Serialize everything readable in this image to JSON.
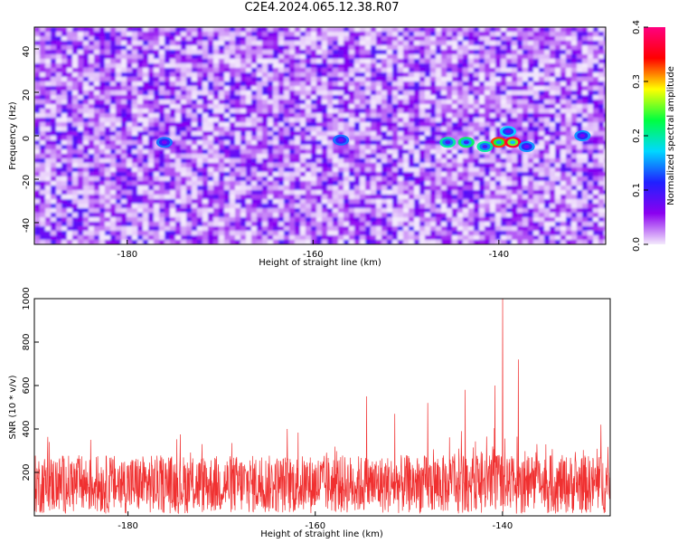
{
  "chart_data": [
    {
      "type": "heatmap",
      "title": "C2E4.2024.065.12.38.R07",
      "xlabel": "Height of straight line (km)",
      "ylabel": "Frequency (Hz)",
      "xlim": [
        -190,
        -128.5
      ],
      "ylim": [
        -50,
        50
      ],
      "x_ticks": [
        "-180",
        "-160",
        "-140"
      ],
      "x_tick_values": [
        -180,
        -160,
        -140
      ],
      "y_ticks": [
        "-40",
        "-20",
        "0",
        "20",
        "40"
      ],
      "y_tick_values": [
        -40,
        -20,
        0,
        20,
        40
      ],
      "colorbar": {
        "label": "Normalized spectral amplitude",
        "range": [
          0,
          0.4
        ],
        "ticks": [
          "0.0",
          "0.1",
          "0.2",
          "0.3",
          "0.4"
        ],
        "tick_values": [
          0,
          0.1,
          0.2,
          0.3,
          0.4
        ],
        "colors": [
          "#f4eafc",
          "#8b00f0",
          "#2020ff",
          "#00d8ff",
          "#00ff40",
          "#ffff00",
          "#ff0000",
          "#ff0080"
        ]
      },
      "background_level": 0.05,
      "hotspots": [
        {
          "x": -140.0,
          "y": -3,
          "value": 0.33
        },
        {
          "x": -138.5,
          "y": -3,
          "value": 0.36
        },
        {
          "x": -143.5,
          "y": -3,
          "value": 0.22
        },
        {
          "x": -145.5,
          "y": -3,
          "value": 0.2
        },
        {
          "x": -141.5,
          "y": -5,
          "value": 0.2
        },
        {
          "x": -139.0,
          "y": 2,
          "value": 0.17
        },
        {
          "x": -131.0,
          "y": 0,
          "value": 0.15
        },
        {
          "x": -176.0,
          "y": -3,
          "value": 0.14
        },
        {
          "x": -157.0,
          "y": -2,
          "value": 0.14
        },
        {
          "x": -137.0,
          "y": -5,
          "value": 0.15
        }
      ],
      "grid": false
    },
    {
      "type": "line",
      "xlabel": "Height of straight line (km)",
      "ylabel": "SNR (10 * v/v)",
      "xlim": [
        -190,
        -128.5
      ],
      "ylim": [
        0,
        1000
      ],
      "x_ticks": [
        "-180",
        "-160",
        "-140"
      ],
      "x_tick_values": [
        -180,
        -160,
        -140
      ],
      "y_ticks": [
        "200",
        "400",
        "600",
        "800",
        "1000"
      ],
      "y_tick_values": [
        200,
        400,
        600,
        800,
        1000
      ],
      "baseline_mean": 140,
      "baseline_range": [
        10,
        280
      ],
      "peaks": [
        {
          "x": -140.0,
          "y": 1000
        },
        {
          "x": -138.3,
          "y": 720
        },
        {
          "x": -140.8,
          "y": 600
        },
        {
          "x": -144.0,
          "y": 580
        },
        {
          "x": -154.5,
          "y": 550
        },
        {
          "x": -148.0,
          "y": 520
        },
        {
          "x": -151.5,
          "y": 470
        },
        {
          "x": -129.5,
          "y": 420
        },
        {
          "x": -163.0,
          "y": 400
        },
        {
          "x": -184.0,
          "y": 350
        }
      ],
      "color": "#f03030",
      "grid": false
    }
  ]
}
